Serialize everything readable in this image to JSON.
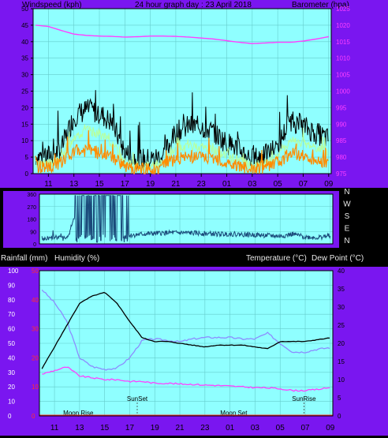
{
  "header": {
    "left_label": "Windspeed (kph)",
    "title": "24 hour graph day : 23 April 2018",
    "right_label": "Barometer (hpa)"
  },
  "panel3_header": {
    "rain_label": "Rainfall (mm)",
    "humidity_label": "Humidity (%)",
    "temp_label": "Temperature (°C)",
    "dew_label": "Dew Point (°C)"
  },
  "direction_labels": [
    "N",
    "W",
    "S",
    "E",
    "N"
  ],
  "time_labels": [
    "11",
    "13",
    "15",
    "17",
    "19",
    "21",
    "23",
    "01",
    "03",
    "05",
    "07",
    "09"
  ],
  "event_labels": {
    "moon_rise": "Moon Rise",
    "sunset": "SunSet",
    "moon_set": "Moon Set",
    "sunrise": "SunRise"
  },
  "colors": {
    "panel": "#7a16f0",
    "plot_bg": "#8fffff",
    "wind_gust": "#000000",
    "wind_avg": "#ff8c00",
    "wind_light": "#b8ff9c",
    "barometer": "#ff40ff",
    "humidity": "#8c8cff",
    "temperature": "#000000",
    "dew_point": "#ff40ff",
    "direction": "#1a4a7a"
  },
  "chart_data": [
    {
      "type": "line",
      "name": "wind-barometer",
      "x_ticks": [
        "11",
        "13",
        "15",
        "17",
        "19",
        "21",
        "23",
        "01",
        "03",
        "05",
        "07",
        "09"
      ],
      "y_left": {
        "label": "Windspeed (kph)",
        "ticks": [
          0,
          5,
          10,
          15,
          20,
          25,
          30,
          35,
          40,
          45,
          50
        ],
        "ylim": [
          0,
          50
        ]
      },
      "y_right": {
        "label": "Barometer (hpa)",
        "ticks": [
          975,
          980,
          985,
          990,
          995,
          1000,
          1005,
          1010,
          1015,
          1020,
          1025
        ],
        "ylim": [
          975,
          1025
        ]
      },
      "x": [
        10,
        11,
        12,
        13,
        14,
        15,
        16,
        17,
        18,
        19,
        20,
        21,
        22,
        23,
        24,
        25,
        26,
        27,
        28,
        29,
        30,
        31,
        32,
        33
      ],
      "series": [
        {
          "axis": "left",
          "color": "#000000",
          "values": [
            5,
            5,
            7,
            17,
            19,
            18,
            15,
            6,
            4,
            4,
            5,
            12,
            14,
            14,
            12,
            9,
            7,
            4,
            5,
            8,
            16,
            14,
            12,
            10
          ]
        },
        {
          "axis": "left",
          "color": "#b8ff9c",
          "values": [
            3,
            3,
            4,
            11,
            13,
            12,
            9,
            3,
            2,
            2,
            3,
            7,
            8,
            8,
            7,
            5,
            4,
            2,
            3,
            5,
            10,
            9,
            8,
            6
          ]
        },
        {
          "axis": "left",
          "color": "#ff8c00",
          "values": [
            2,
            2,
            3,
            6,
            7,
            6,
            5,
            2,
            1,
            1,
            2,
            4,
            5,
            5,
            4,
            3,
            2,
            1,
            2,
            3,
            6,
            5,
            4,
            3
          ]
        },
        {
          "axis": "right",
          "color": "#ff40ff",
          "values": [
            1020,
            1019.6,
            1018.4,
            1017.3,
            1016.9,
            1016.7,
            1016.6,
            1016.4,
            1016.5,
            1016.7,
            1016.7,
            1016.6,
            1016.4,
            1016.1,
            1015.8,
            1015.3,
            1014.8,
            1014.4,
            1014.6,
            1014.8,
            1014.8,
            1015.2,
            1015.8,
            1016.5
          ]
        }
      ]
    },
    {
      "type": "scatter",
      "name": "wind-direction",
      "y_labels": [
        "N",
        "W",
        "S",
        "E",
        "N"
      ],
      "y_ticks": [
        0,
        90,
        180,
        270,
        360
      ],
      "x": [
        10,
        11,
        12,
        13,
        14,
        15,
        16,
        17,
        18,
        19,
        20,
        21,
        22,
        23,
        24,
        25,
        26,
        27,
        28,
        29,
        30,
        31,
        32,
        33
      ],
      "values": [
        30,
        50,
        35,
        300,
        280,
        310,
        290,
        60,
        70,
        75,
        80,
        80,
        78,
        75,
        70,
        72,
        68,
        65,
        60,
        55,
        70,
        50,
        45,
        60
      ]
    },
    {
      "type": "line",
      "name": "rain-humidity-temp",
      "x_ticks": [
        "11",
        "13",
        "15",
        "17",
        "19",
        "21",
        "23",
        "01",
        "03",
        "05",
        "07",
        "09"
      ],
      "y_left": {
        "label": "Humidity (%)",
        "ticks": [
          0,
          10,
          20,
          30,
          40,
          50,
          60,
          70,
          80,
          90,
          100
        ],
        "ylim": [
          0,
          100
        ]
      },
      "y_left_rain": {
        "label": "Rainfall (mm)",
        "ticks": [
          0,
          10,
          20,
          30,
          40,
          50
        ],
        "ylim": [
          0,
          50
        ]
      },
      "y_right": {
        "label": "Temperature (°C)",
        "ticks": [
          0,
          5,
          10,
          15,
          20,
          25,
          30,
          35,
          40
        ],
        "ylim": [
          0,
          40
        ]
      },
      "x": [
        10,
        11,
        12,
        13,
        14,
        15,
        16,
        17,
        18,
        19,
        20,
        21,
        22,
        23,
        24,
        25,
        26,
        27,
        28,
        29,
        30,
        31,
        32,
        33
      ],
      "series": [
        {
          "axis": "left",
          "color": "#8c8cff",
          "values": [
            87,
            78,
            65,
            40,
            34,
            32,
            33,
            40,
            52,
            53,
            52,
            51,
            53,
            54,
            54,
            54,
            53,
            53,
            57,
            50,
            44,
            44,
            46,
            47
          ]
        },
        {
          "axis": "right",
          "color": "#000000",
          "values": [
            13,
            19,
            25,
            31,
            33,
            34,
            31,
            26,
            21.5,
            20.5,
            20.5,
            20,
            19.5,
            19,
            19.5,
            19.5,
            19.5,
            19,
            18.5,
            20.5,
            20.5,
            20.5,
            21,
            21.5
          ]
        },
        {
          "axis": "right",
          "color": "#ff40ff",
          "values": [
            11.5,
            12.5,
            13.5,
            11,
            10.5,
            10,
            10,
            9.5,
            9.5,
            9,
            9,
            8.8,
            8.7,
            8.5,
            8.4,
            8.2,
            8,
            7.8,
            7.7,
            7.5,
            7,
            7,
            7.3,
            7.8
          ]
        },
        {
          "axis": "rain",
          "color": "#000000",
          "values": [
            0,
            0,
            0,
            0,
            0,
            0,
            0,
            0,
            0,
            0,
            0,
            0,
            0,
            0,
            0,
            0,
            0,
            0,
            0,
            0,
            0,
            0,
            0,
            0
          ]
        }
      ]
    }
  ]
}
